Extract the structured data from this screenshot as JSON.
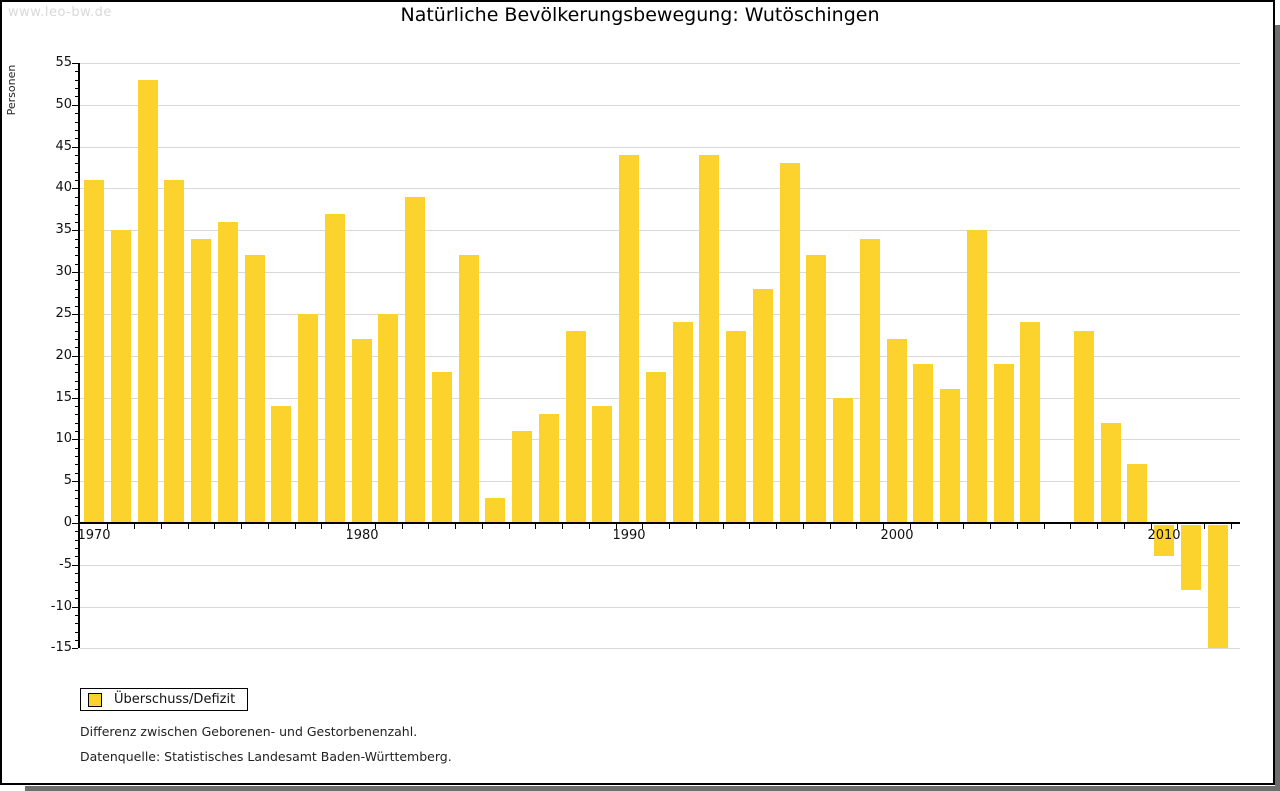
{
  "watermark": "www.leo-bw.de",
  "title": "Natürliche Bevölkerungsbewegung: Wutöschingen",
  "legend": {
    "label": "Überschuss/Defizit"
  },
  "footnotes": {
    "line1": "Differenz zwischen Geborenen- und Gestorbenenzahl.",
    "line2": "Datenquelle: Statistisches Landesamt Baden-Württemberg."
  },
  "colors": {
    "bar": "#fcd32d",
    "grid": "#d9d9d9",
    "axis": "#000000",
    "watermark": "#d9d9d9",
    "shadow": "#6e6e6e"
  },
  "chart_data": {
    "type": "bar",
    "title": "Natürliche Bevölkerungsbewegung: Wutöschingen",
    "xlabel": "",
    "ylabel": "Personen",
    "ylim": [
      -15,
      55
    ],
    "ytick_major_step": 5,
    "ytick_minor_step": 1,
    "grid": true,
    "legend_position": "bottom-left",
    "series_name": "Überschuss/Defizit",
    "x": [
      1970,
      1971,
      1972,
      1973,
      1974,
      1975,
      1976,
      1977,
      1978,
      1979,
      1980,
      1981,
      1982,
      1983,
      1984,
      1985,
      1986,
      1987,
      1988,
      1989,
      1990,
      1991,
      1992,
      1993,
      1994,
      1995,
      1996,
      1997,
      1998,
      1999,
      2000,
      2001,
      2002,
      2003,
      2004,
      2005,
      2006,
      2007,
      2008,
      2009,
      2010,
      2011,
      2012
    ],
    "values": [
      41,
      35,
      53,
      41,
      34,
      36,
      32,
      14,
      25,
      37,
      22,
      25,
      39,
      18,
      32,
      3,
      11,
      13,
      23,
      14,
      44,
      18,
      24,
      44,
      23,
      28,
      43,
      32,
      15,
      34,
      22,
      19,
      16,
      35,
      19,
      24,
      0,
      23,
      12,
      7,
      -4,
      -8,
      -15
    ],
    "xtick_label_years": [
      1970,
      1980,
      1990,
      2000,
      2010
    ]
  }
}
